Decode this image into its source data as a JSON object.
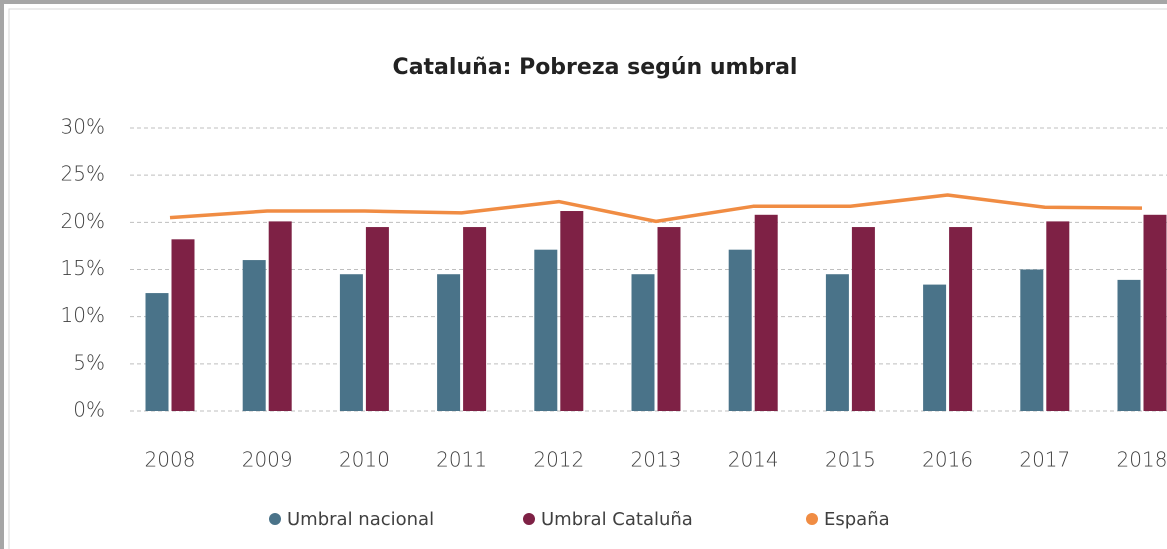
{
  "chart_data": {
    "type": "bar_line",
    "title": "Cataluña: Pobreza según umbral",
    "categories": [
      "2008",
      "2009",
      "2010",
      "2011",
      "2012",
      "2013",
      "2014",
      "2015",
      "2016",
      "2017",
      "2018"
    ],
    "series": [
      {
        "name": "Umbral nacional",
        "color": "#4a7389",
        "kind": "bar",
        "values": [
          12.5,
          16.0,
          14.5,
          14.5,
          17.1,
          14.5,
          17.1,
          14.5,
          13.4,
          15.0,
          13.9
        ]
      },
      {
        "name": "Umbral Cataluña",
        "color": "#7e2145",
        "kind": "bar",
        "values": [
          18.2,
          20.1,
          19.5,
          19.5,
          21.2,
          19.5,
          20.8,
          19.5,
          19.5,
          20.1,
          20.8
        ]
      },
      {
        "name": "España",
        "color": "#f08c43",
        "kind": "line",
        "values": [
          20.5,
          21.2,
          21.2,
          21.0,
          22.2,
          20.1,
          21.7,
          21.7,
          22.9,
          21.6,
          21.5
        ]
      }
    ],
    "ylim": [
      0,
      30
    ],
    "yticks": [
      {
        "value": 0,
        "label": "0%"
      },
      {
        "value": 5,
        "label": "5%"
      },
      {
        "value": 10,
        "label": "10%"
      },
      {
        "value": 15,
        "label": "15%"
      },
      {
        "value": 20,
        "label": "20%"
      },
      {
        "value": 25,
        "label": "25%"
      },
      {
        "value": 30,
        "label": "30%"
      }
    ],
    "grid": true,
    "legend": "bottom"
  }
}
